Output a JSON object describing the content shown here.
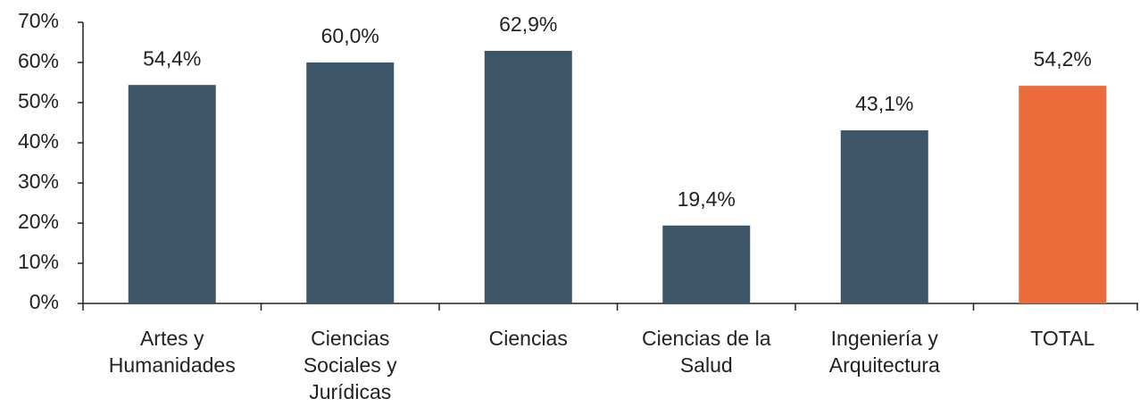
{
  "chart_data": {
    "type": "bar",
    "categories": [
      "Artes y Humanidades",
      "Ciencias Sociales y Jurídicas",
      "Ciencias",
      "Ciencias de la Salud",
      "Ingeniería y Arquitectura",
      "TOTAL"
    ],
    "values": [
      54.4,
      60.0,
      62.9,
      19.4,
      43.1,
      54.2
    ],
    "value_labels": [
      "54,4%",
      "60,0%",
      "62,9%",
      "19,4%",
      "43,1%",
      "54,2%"
    ],
    "colors": [
      "#3d5568",
      "#3d5568",
      "#3d5568",
      "#3d5568",
      "#3d5568",
      "#ec6b3b"
    ],
    "ylim": [
      0,
      70
    ],
    "yticks": [
      {
        "value": 0,
        "label": "0%"
      },
      {
        "value": 10,
        "label": "10%"
      },
      {
        "value": 20,
        "label": "20%"
      },
      {
        "value": 30,
        "label": "30%"
      },
      {
        "value": 40,
        "label": "40%"
      },
      {
        "value": 50,
        "label": "50%"
      },
      {
        "value": 60,
        "label": "60%"
      },
      {
        "value": 70,
        "label": "70%"
      }
    ],
    "grid": false
  }
}
